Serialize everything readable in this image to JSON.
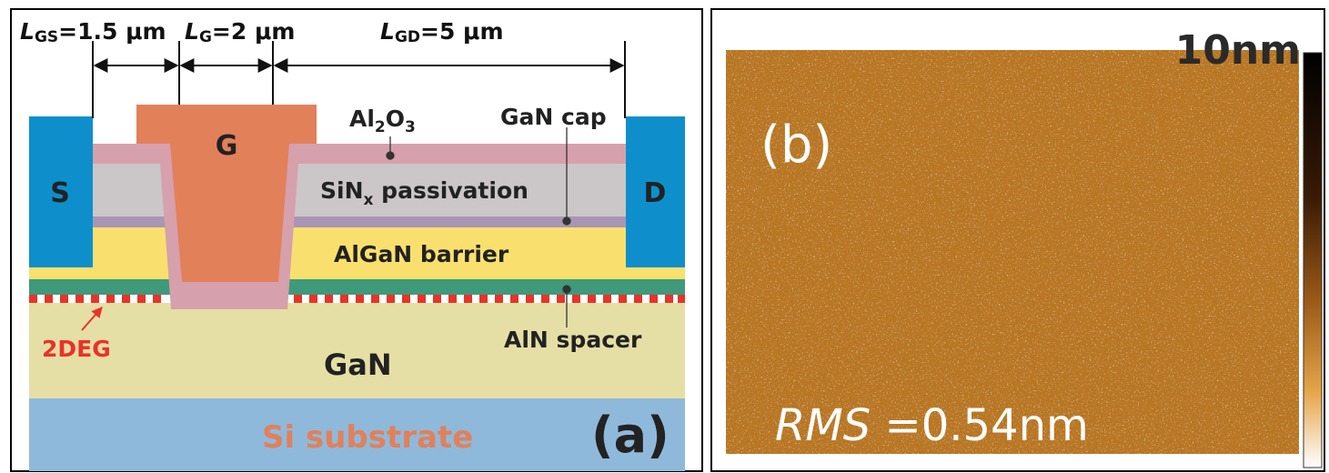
{
  "dimensions": {
    "lgs_prefix": "L",
    "lgs_sub": "GS",
    "lgs_value": "=1.5 μm",
    "lg_prefix": "L",
    "lg_sub": "G",
    "lg_value": "=2 μm",
    "lgd_prefix": "L",
    "lgd_sub": "GD",
    "lgd_value": "=5 μm"
  },
  "panel_a": {
    "source_label": "S",
    "gate_label": "G",
    "drain_label": "D",
    "al2o3_main": "Al",
    "al2o3_sub1": "2",
    "al2o3_mid": "O",
    "al2o3_sub2": "3",
    "gan_cap_label": "GaN cap",
    "sin_main": "SiN",
    "sin_sub": "x",
    "sin_rest": " passivation",
    "algan_label": "AlGaN barrier",
    "aln_label": "AlN spacer",
    "twodeg_label": "2DEG",
    "gan_label": "GaN",
    "substrate_label": "Si substrate",
    "panel_label": "(a)"
  },
  "panel_b": {
    "panel_label": "(b)",
    "scale_label": "10nm",
    "rms_label": "RMS",
    "rms_value": " =0.54nm"
  },
  "colors": {
    "contact_blue": "#0E8FCB",
    "gate_orange": "#E2805A",
    "al2o3_pink": "#D6A0AC",
    "sinx_gray": "#CBC6C7",
    "gan_cap_purple": "#A996B4",
    "algan_yellow": "#F9E06E",
    "aln_green": "#3E9A7A",
    "twodeg_red": "#E8332A",
    "gan_khaki": "#E6DFA5",
    "substrate_blue": "#8FB9DA",
    "afm_brown": "#B97622"
  }
}
